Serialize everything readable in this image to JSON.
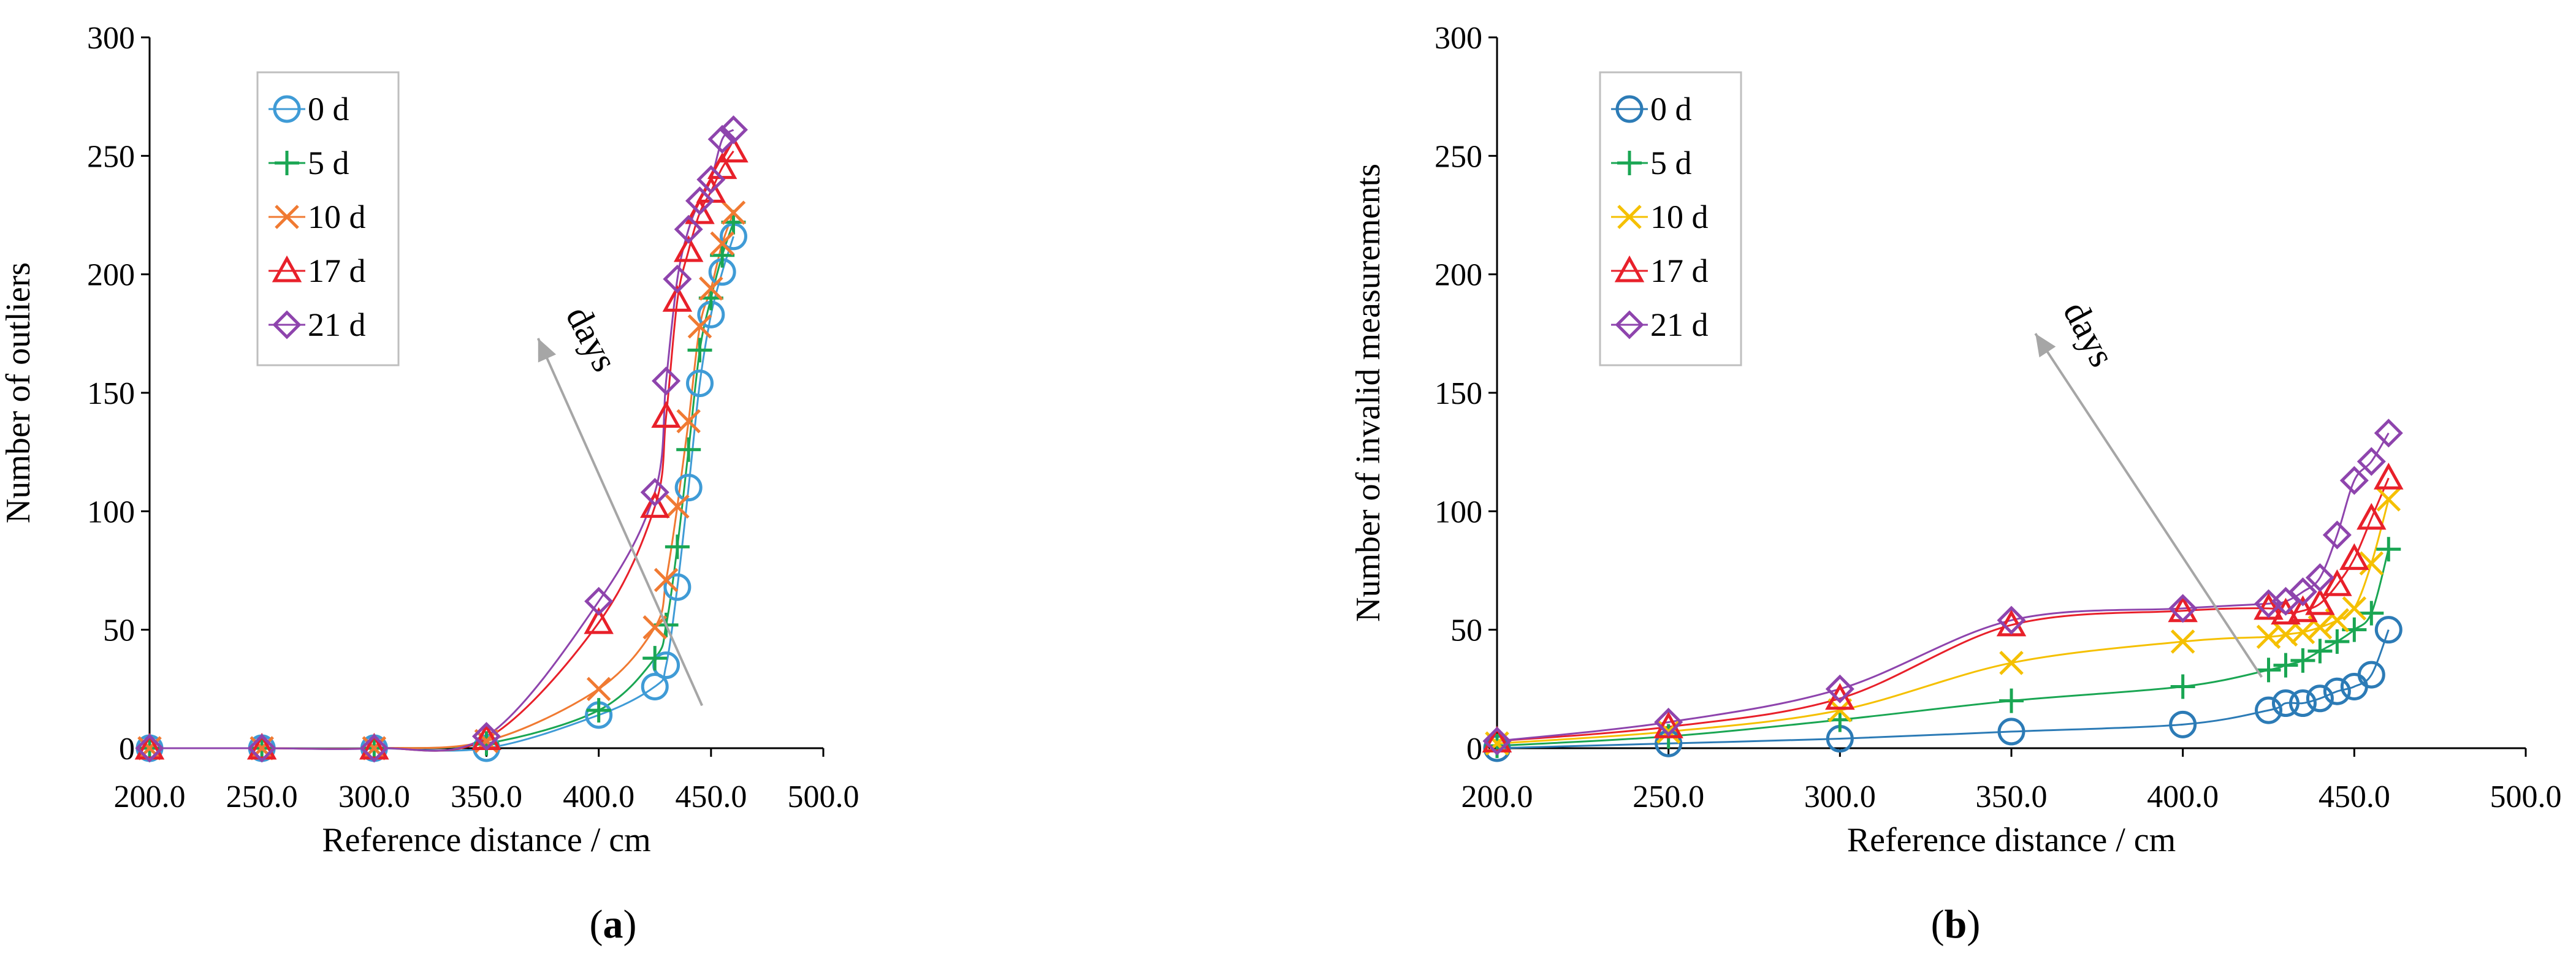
{
  "chart_data": [
    {
      "type": "line",
      "panel": "a",
      "caption": {
        "open": "(",
        "letter": "a",
        "close": ")"
      },
      "xlabel": "Reference distance / cm",
      "ylabel": "Number of outliers",
      "xlim": [
        200,
        500
      ],
      "ylim": [
        0,
        300
      ],
      "xticks": [
        200,
        250,
        300,
        350,
        400,
        450,
        500
      ],
      "xtick_labels": [
        "200.0",
        "250.0",
        "300.0",
        "350.0",
        "400.0",
        "450.0",
        "500.0"
      ],
      "yticks": [
        0,
        50,
        100,
        150,
        200,
        250,
        300
      ],
      "ytick_labels": [
        "0",
        "50",
        "100",
        "150",
        "200",
        "250",
        "300"
      ],
      "grid": false,
      "legend_position": "top-left",
      "annotation": {
        "text": "days",
        "arrow_from": [
          446,
          18
        ],
        "arrow_to": [
          373,
          173
        ]
      },
      "series": [
        {
          "name": "0 d",
          "marker": "circle",
          "color": "#3f9bd6",
          "x": [
            200,
            250,
            300,
            350,
            400,
            425,
            430,
            435,
            440,
            445,
            450,
            455,
            460
          ],
          "y": [
            0,
            0,
            0,
            0,
            14,
            26,
            35,
            68,
            110,
            154,
            183,
            201,
            216
          ]
        },
        {
          "name": "5 d",
          "marker": "plus",
          "color": "#1aa653",
          "x": [
            200,
            250,
            300,
            350,
            400,
            425,
            430,
            435,
            440,
            445,
            450,
            455,
            460
          ],
          "y": [
            0,
            0,
            0,
            2,
            16,
            38,
            52,
            85,
            126,
            168,
            190,
            208,
            222
          ]
        },
        {
          "name": "10 d",
          "marker": "x",
          "color": "#f07a32",
          "x": [
            200,
            250,
            300,
            350,
            400,
            425,
            430,
            435,
            440,
            445,
            450,
            455,
            460
          ],
          "y": [
            0,
            0,
            0,
            3,
            25,
            51,
            71,
            102,
            138,
            178,
            194,
            213,
            226
          ]
        },
        {
          "name": "17 d",
          "marker": "triangle",
          "color": "#e8202a",
          "x": [
            200,
            250,
            300,
            350,
            400,
            425,
            430,
            435,
            440,
            445,
            450,
            455,
            460
          ],
          "y": [
            0,
            0,
            0,
            4,
            53,
            102,
            140,
            189,
            210,
            226,
            235,
            245,
            252
          ]
        },
        {
          "name": "21 d",
          "marker": "diamond",
          "color": "#8e44ad",
          "x": [
            200,
            250,
            300,
            350,
            400,
            425,
            430,
            435,
            440,
            445,
            450,
            455,
            460
          ],
          "y": [
            0,
            0,
            0,
            5,
            62,
            108,
            155,
            198,
            219,
            231,
            240,
            257,
            261
          ]
        }
      ]
    },
    {
      "type": "line",
      "panel": "b",
      "caption": {
        "open": "(",
        "letter": "b",
        "close": ")"
      },
      "xlabel": "Reference distance / cm",
      "ylabel": "Number of invalid measurements",
      "xlim": [
        200,
        500
      ],
      "ylim": [
        0,
        300
      ],
      "xticks": [
        200,
        250,
        300,
        350,
        400,
        450,
        500
      ],
      "xtick_labels": [
        "200.0",
        "250.0",
        "300.0",
        "350.0",
        "400.0",
        "450.0",
        "500.0"
      ],
      "yticks": [
        0,
        50,
        100,
        150,
        200,
        250,
        300
      ],
      "ytick_labels": [
        "0",
        "50",
        "100",
        "150",
        "200",
        "250",
        "300"
      ],
      "grid": false,
      "legend_position": "top-left",
      "annotation": {
        "text": "days",
        "arrow_from": [
          423,
          30
        ],
        "arrow_to": [
          357,
          175
        ]
      },
      "series": [
        {
          "name": "0 d",
          "marker": "circle",
          "color": "#2c7bb6",
          "x": [
            200,
            250,
            300,
            350,
            400,
            425,
            430,
            435,
            440,
            445,
            450,
            455,
            460
          ],
          "y": [
            0,
            2,
            4,
            7,
            10,
            16,
            19,
            19,
            21,
            24,
            26,
            31,
            50
          ]
        },
        {
          "name": "5 d",
          "marker": "plus",
          "color": "#1aa653",
          "x": [
            200,
            250,
            300,
            350,
            400,
            425,
            430,
            435,
            440,
            445,
            450,
            455,
            460
          ],
          "y": [
            1,
            5,
            12,
            20,
            26,
            33,
            35,
            37,
            41,
            45,
            50,
            57,
            84
          ]
        },
        {
          "name": "10 d",
          "marker": "x",
          "color": "#f5c000",
          "x": [
            200,
            250,
            300,
            350,
            400,
            425,
            430,
            435,
            440,
            445,
            450,
            455,
            460
          ],
          "y": [
            2,
            7,
            16,
            36,
            45,
            47,
            48,
            49,
            51,
            54,
            59,
            78,
            105
          ]
        },
        {
          "name": "17 d",
          "marker": "triangle",
          "color": "#e8202a",
          "x": [
            200,
            250,
            300,
            350,
            400,
            425,
            430,
            435,
            440,
            445,
            450,
            455,
            460
          ],
          "y": [
            3,
            9,
            21,
            52,
            58,
            59,
            57,
            58,
            61,
            69,
            80,
            97,
            114
          ]
        },
        {
          "name": "21 d",
          "marker": "diamond",
          "color": "#8e44ad",
          "x": [
            200,
            250,
            300,
            350,
            400,
            425,
            430,
            435,
            440,
            445,
            450,
            455,
            460
          ],
          "y": [
            3,
            11,
            25,
            54,
            59,
            61,
            62,
            66,
            72,
            90,
            113,
            121,
            133
          ]
        }
      ]
    }
  ]
}
